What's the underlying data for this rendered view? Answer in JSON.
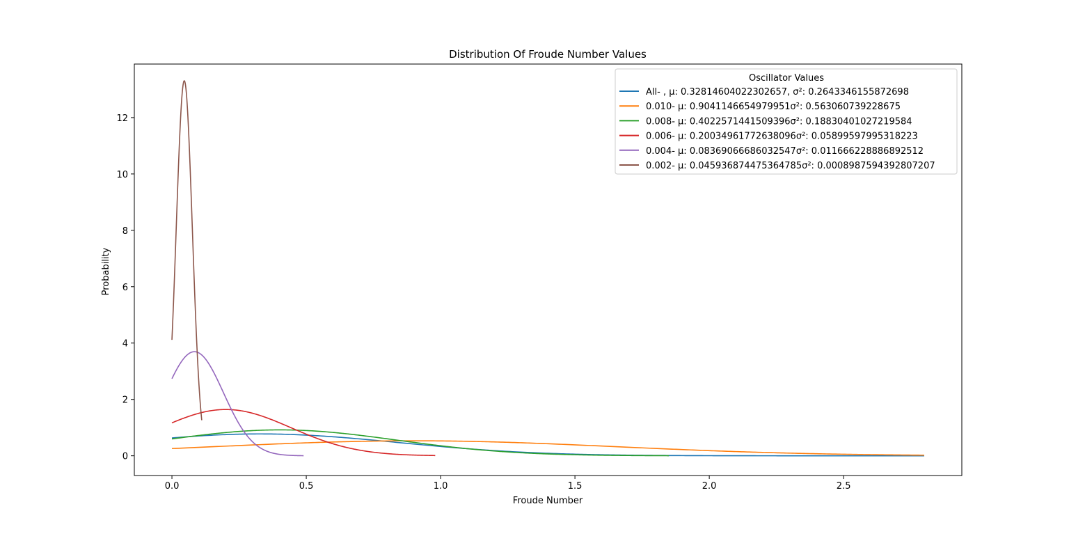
{
  "chart_data": {
    "type": "line",
    "title": "Distribution Of Froude Number Values",
    "xlabel": "Froude Number",
    "ylabel": "Probability",
    "xlim": [
      -0.14,
      2.94
    ],
    "ylim": [
      -0.7,
      13.9
    ],
    "xticks": [
      0.0,
      0.5,
      1.0,
      1.5,
      2.0,
      2.5
    ],
    "xtick_labels": [
      "0.0",
      "0.5",
      "1.0",
      "1.5",
      "2.0",
      "2.5"
    ],
    "yticks": [
      0,
      2,
      4,
      6,
      8,
      10,
      12
    ],
    "ytick_labels": [
      "0",
      "2",
      "4",
      "6",
      "8",
      "10",
      "12"
    ],
    "grid": false,
    "legend": {
      "title": "Oscillator Values",
      "placement": "top-right"
    },
    "series": [
      {
        "name": "All- , μ: 0.32814604022302657, σ²: 0.2643346155872698",
        "color": "#1f77b4",
        "x_min": 0.0,
        "x_max": 2.8,
        "mu": 0.32814604022302657,
        "var": 0.2643346155872698
      },
      {
        "name": "0.010- μ: 0.9041146654979951σ²: 0.563060739228675",
        "color": "#ff7f0e",
        "x_min": 0.0,
        "x_max": 2.8,
        "mu": 0.9041146654979951,
        "var": 0.563060739228675
      },
      {
        "name": "0.008- μ: 0.4022571441509396σ²: 0.18830401027219584",
        "color": "#2ca02c",
        "x_min": 0.0,
        "x_max": 1.85,
        "mu": 0.4022571441509396,
        "var": 0.18830401027219584
      },
      {
        "name": "0.006- μ: 0.20034961772638096σ²: 0.05899597995318223",
        "color": "#d62728",
        "x_min": 0.0,
        "x_max": 0.98,
        "mu": 0.20034961772638096,
        "var": 0.05899597995318223
      },
      {
        "name": "0.004- μ: 0.08369066686032547σ²: 0.011666228886892512",
        "color": "#9467bd",
        "x_min": 0.0,
        "x_max": 0.49,
        "mu": 0.08369066686032547,
        "var": 0.011666228886892512
      },
      {
        "name": "0.002- μ: 0.045936874475364785σ²: 0.0008987594392807207",
        "color": "#8c564b",
        "x_min": 0.0,
        "x_max": 0.111,
        "mu": 0.045936874475364785,
        "var": 0.0008987594392807207
      }
    ]
  }
}
